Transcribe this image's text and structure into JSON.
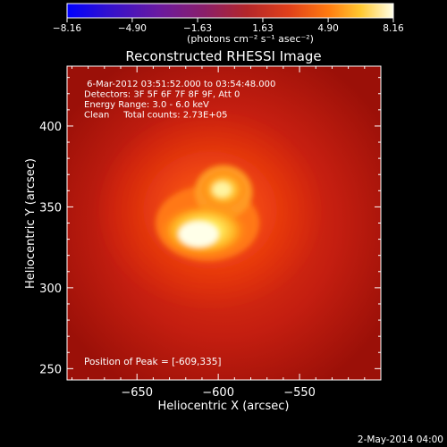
{
  "chart_data": {
    "type": "heatmap",
    "title": "Reconstructed RHESSI Image",
    "xlabel": "Heliocentric X (arcsec)",
    "ylabel": "Heliocentric Y (arcsec)",
    "xlim": [
      -693,
      -500
    ],
    "ylim": [
      243,
      437
    ],
    "xticks": [
      -650,
      -600,
      -550
    ],
    "xtick_labels": [
      "−650",
      "−600",
      "−550"
    ],
    "yticks": [
      250,
      300,
      350,
      400
    ],
    "ytick_labels": [
      "250",
      "300",
      "350",
      "400"
    ],
    "colorbar": {
      "colormap": "hot",
      "range": [
        -8.16,
        8.16
      ],
      "ticks": [
        -8.16,
        -4.9,
        -1.63,
        1.63,
        4.9,
        8.16
      ],
      "tick_labels": [
        "−8.16",
        "−4.90",
        "−1.63",
        "1.63",
        "4.90",
        "8.16"
      ],
      "unit_label": "(photons cm⁻² s⁻¹ asec⁻²)",
      "low_color": "#0000ff",
      "high_color": "#ffffe8"
    },
    "peak": [
      -609,
      335
    ],
    "sources": [
      {
        "name": "lower bright source",
        "x": -609,
        "y": 336
      },
      {
        "name": "upper bright source",
        "x": -596,
        "y": 362
      }
    ],
    "annotations": [
      " 6-Mar-2012 03:51:52.000 to 03:54:48.000",
      "Detectors: 3F 5F 6F 7F 8F 9F, Att 0",
      "Energy Range: 3.0 - 6.0 keV",
      "Clean     Total counts: 2.73E+05"
    ],
    "peak_label": "Position of Peak = [-609,335]",
    "grid": false,
    "footer_date": "2-May-2014 04:00"
  }
}
